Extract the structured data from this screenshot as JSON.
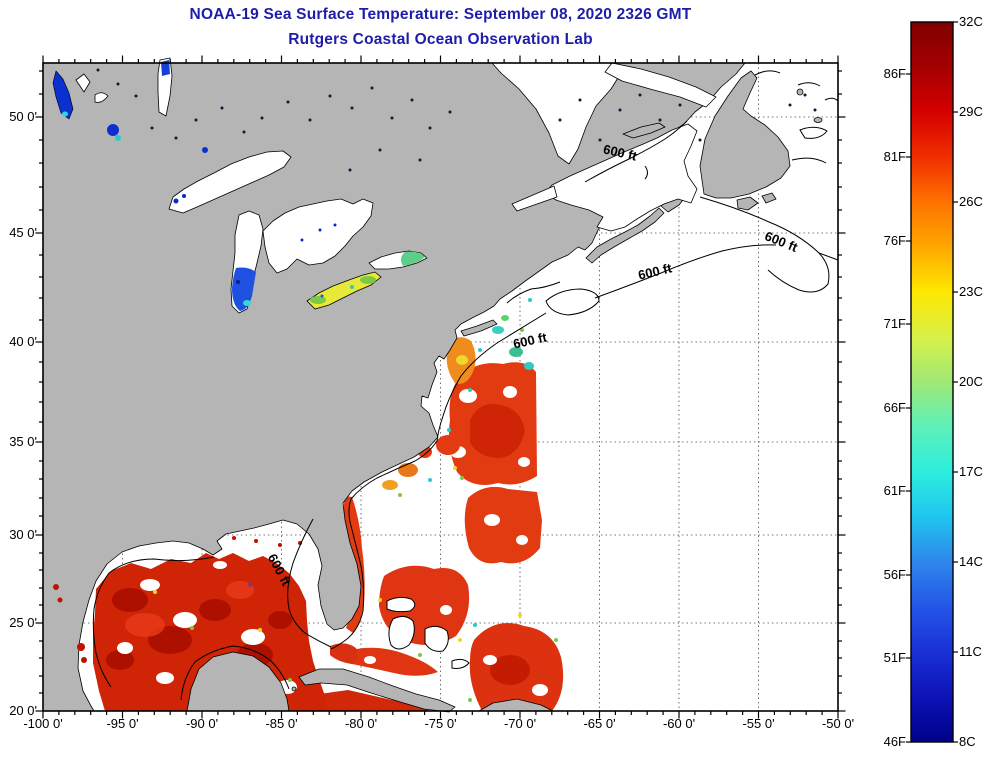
{
  "title": {
    "line1": "NOAA-19 Sea Surface Temperature:  September 08, 2020 2326 GMT",
    "line2": "Rutgers Coastal Ocean Observation Lab"
  },
  "axes": {
    "x_ticks": [
      "-100 0'",
      "-95 0'",
      "-90 0'",
      "-85 0'",
      "-80 0'",
      "-75 0'",
      "-70 0'",
      "-65 0'",
      "-60 0'",
      "-55 0'",
      "-50 0'"
    ],
    "y_ticks": [
      "50 0'",
      "45 0'",
      "40 0'",
      "35 0'",
      "30 0'",
      "25 0'",
      "20 0'"
    ]
  },
  "colorbar": {
    "celsius_labels": [
      "32C",
      "29C",
      "26C",
      "23C",
      "20C",
      "17C",
      "14C",
      "11C",
      "8C"
    ],
    "fahrenheit_labels": [
      "86F",
      "81F",
      "76F",
      "71F",
      "66F",
      "61F",
      "56F",
      "51F",
      "46F"
    ],
    "min_c": 8,
    "max_c": 32
  },
  "map": {
    "depth_labels": [
      "600 ft",
      "600 ft",
      "600 ft",
      "600 ft",
      "600 ft"
    ]
  },
  "colors": {
    "title_text": "#1d1daa",
    "land": "#b5b5b5",
    "no_data_ocean": "#ffffff",
    "warm_deep_red": "#a80d00",
    "warm_red": "#e23b12",
    "mid_yellow": "#ecd92a",
    "cool_cyan": "#2fc9c9",
    "cold_blue": "#0c2fd0",
    "colorbar_top": "#800000",
    "colorbar_bottom": "#000089"
  }
}
